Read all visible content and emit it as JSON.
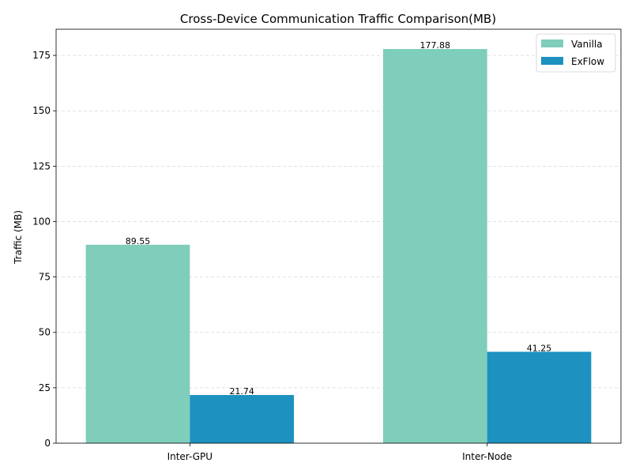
{
  "chart_data": {
    "type": "bar",
    "title": "Cross-Device Communication Traffic Comparison(MB)",
    "xlabel": "",
    "ylabel": "Traffic (MB)",
    "categories": [
      "Inter-GPU",
      "Inter-Node"
    ],
    "series": [
      {
        "name": "Vanilla",
        "values": [
          89.55,
          177.88
        ],
        "labels": [
          "89.55",
          "177.88"
        ],
        "color": "#7fcdbb"
      },
      {
        "name": "ExFlow",
        "values": [
          21.74,
          41.25
        ],
        "labels": [
          "21.74",
          "41.25"
        ],
        "color": "#1d91c0"
      }
    ],
    "ylim": [
      0,
      186.8
    ],
    "yticks": [
      0,
      25,
      50,
      75,
      100,
      125,
      150,
      175
    ],
    "ytick_labels": [
      "0",
      "25",
      "50",
      "75",
      "100",
      "125",
      "150",
      "175"
    ],
    "grid": {
      "y": true,
      "style": "dashed"
    },
    "legend_position": "top-right"
  }
}
